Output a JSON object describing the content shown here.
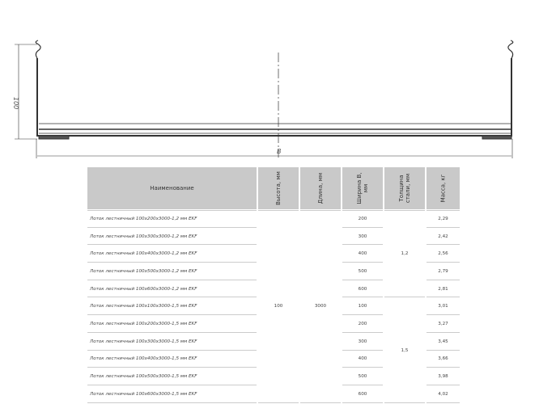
{
  "drawing": {
    "height_label": "100",
    "width_label": "B"
  },
  "table": {
    "headers": [
      "Наименование",
      "Высота, мм",
      "Длина, мм",
      "Ширина B, мм",
      "Толщина стали, мм",
      "Масса, кг"
    ],
    "height": "100",
    "length": "3000",
    "thickness_groups": [
      "1,2",
      "1,5"
    ],
    "rows": [
      {
        "name": "Лоток лестничный 100х200х3000-1,2 мм EKF",
        "width": "200",
        "mass": "2,29"
      },
      {
        "name": "Лоток лестничный 100х300х3000-1,2 мм EKF",
        "width": "300",
        "mass": "2,42"
      },
      {
        "name": "Лоток лестничный 100х400х3000-1,2 мм EKF",
        "width": "400",
        "mass": "2,56"
      },
      {
        "name": "Лоток лестничный 100х500х3000-1,2 мм EKF",
        "width": "500",
        "mass": "2,79"
      },
      {
        "name": "Лоток лестничный 100х600х3000-1,2 мм EKF",
        "width": "600",
        "mass": "2,81"
      },
      {
        "name": "Лоток лестничный 100х100х3000-1,5 мм EKF",
        "width": "100",
        "mass": "3,01"
      },
      {
        "name": "Лоток лестничный 100х200х3000-1,5 мм EKF",
        "width": "200",
        "mass": "3,27"
      },
      {
        "name": "Лоток лестничный 100х300х3000-1,5 мм EKF",
        "width": "300",
        "mass": "3,45"
      },
      {
        "name": "Лоток лестничный 100х400х3000-1,5 мм EKF",
        "width": "400",
        "mass": "3,66"
      },
      {
        "name": "Лоток лестничный 100х500х3000-1,5 мм EKF",
        "width": "500",
        "mass": "3,98"
      },
      {
        "name": "Лоток лестничный 100х600х3000-1,5 мм EKF",
        "width": "600",
        "mass": "4,02"
      }
    ]
  }
}
